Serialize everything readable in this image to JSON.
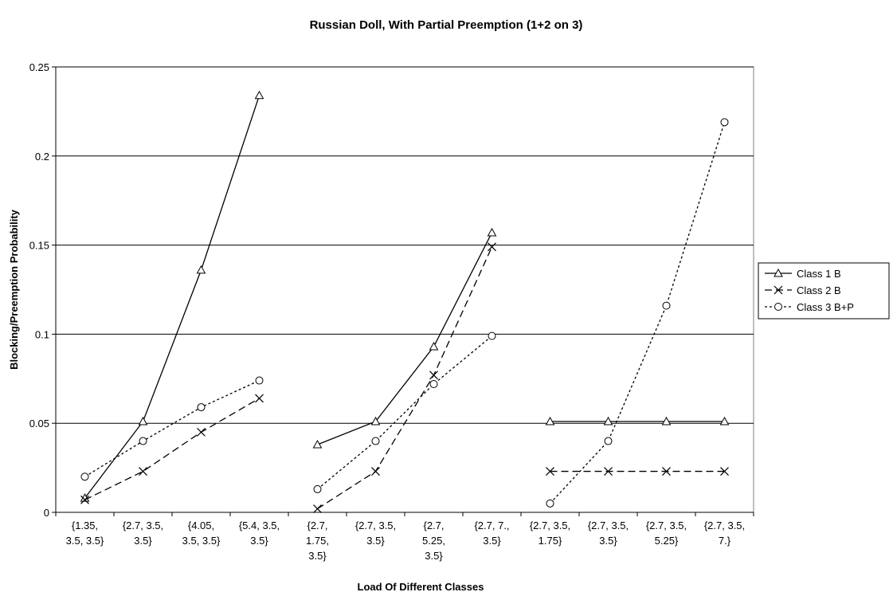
{
  "chart_data": {
    "type": "line",
    "title": "Russian Doll, With Partial Preemption (1+2 on 3)",
    "xlabel": "Load Of Different Classes",
    "ylabel": "Blocking/Preemption Probability",
    "ylim": [
      0,
      0.25
    ],
    "yticks": [
      "0",
      "0.05",
      "0.1",
      "0.15",
      "0.2",
      "0.25"
    ],
    "categories": [
      [
        "{1.35,",
        "3.5, 3.5}"
      ],
      [
        "{2.7, 3.5,",
        "3.5}"
      ],
      [
        "{4.05,",
        "3.5, 3.5}"
      ],
      [
        "{5.4, 3.5,",
        "3.5}"
      ],
      [
        "{2.7,",
        "1.75,",
        "3.5}"
      ],
      [
        "{2.7, 3.5,",
        "3.5}"
      ],
      [
        "{2.7,",
        "5.25,",
        "3.5}"
      ],
      [
        "{2.7, 7.,",
        "3.5}"
      ],
      [
        "{2.7, 3.5,",
        "1.75}"
      ],
      [
        "{2.7, 3.5,",
        "3.5}"
      ],
      [
        "{2.7, 3.5,",
        "5.25}"
      ],
      [
        "{2.7, 3.5,",
        "7.}"
      ]
    ],
    "groups": [
      [
        0,
        3
      ],
      [
        4,
        7
      ],
      [
        8,
        11
      ]
    ],
    "grid": "horizontal",
    "legend_position": "right",
    "series": [
      {
        "name": "Class 1 B",
        "marker": "triangle",
        "dash": "solid",
        "values": [
          0.008,
          0.051,
          0.136,
          0.234,
          0.038,
          0.051,
          0.093,
          0.157,
          0.051,
          0.051,
          0.051,
          0.051
        ]
      },
      {
        "name": "Class 2 B",
        "marker": "x",
        "dash": "dashed",
        "values": [
          0.007,
          0.023,
          0.045,
          0.064,
          0.002,
          0.023,
          0.077,
          0.149,
          0.023,
          0.023,
          0.023,
          0.023
        ]
      },
      {
        "name": "Class 3 B+P",
        "marker": "circle",
        "dash": "dotted",
        "values": [
          0.02,
          0.04,
          0.059,
          0.074,
          0.013,
          0.04,
          0.072,
          0.099,
          0.005,
          0.04,
          0.116,
          0.219
        ]
      }
    ]
  }
}
